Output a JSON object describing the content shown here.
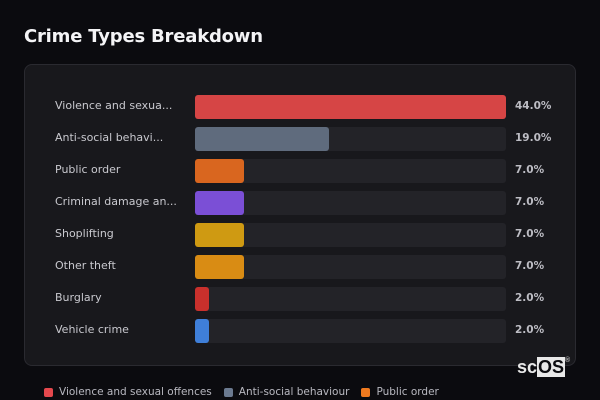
{
  "title": "Crime Types Breakdown",
  "chart_data": {
    "type": "bar",
    "orientation": "horizontal",
    "title": "Crime Types Breakdown",
    "categories": [
      "Violence and sexual offences",
      "Anti-social behaviour",
      "Public order",
      "Criminal damage and arson",
      "Shoplifting",
      "Other theft",
      "Burglary",
      "Vehicle crime"
    ],
    "display_labels": [
      "Violence and sexua...",
      "Anti-social behavi...",
      "Public order",
      "Criminal damage an...",
      "Shoplifting",
      "Other theft",
      "Burglary",
      "Vehicle crime"
    ],
    "values": [
      44.0,
      19.0,
      7.0,
      7.0,
      7.0,
      7.0,
      2.0,
      2.0
    ],
    "value_labels": [
      "44.0%",
      "19.0%",
      "7.0%",
      "7.0%",
      "7.0%",
      "7.0%",
      "2.0%",
      "2.0%"
    ],
    "colors": [
      "#d64545",
      "#5f6b7d",
      "#d9661f",
      "#7b4fd6",
      "#cf9a12",
      "#d98c14",
      "#c9302c",
      "#3f7fd9"
    ],
    "xlim": [
      0,
      44
    ],
    "legend_position": "bottom",
    "grid": false
  },
  "legend": [
    {
      "label": "Violence and sexual offences",
      "color": "#e5484d"
    },
    {
      "label": "Anti-social behaviour",
      "color": "#6b7a90"
    },
    {
      "label": "Public order",
      "color": "#f07a1f"
    }
  ],
  "watermark": {
    "pre": "sc",
    "box": "OS",
    "reg": "®"
  }
}
